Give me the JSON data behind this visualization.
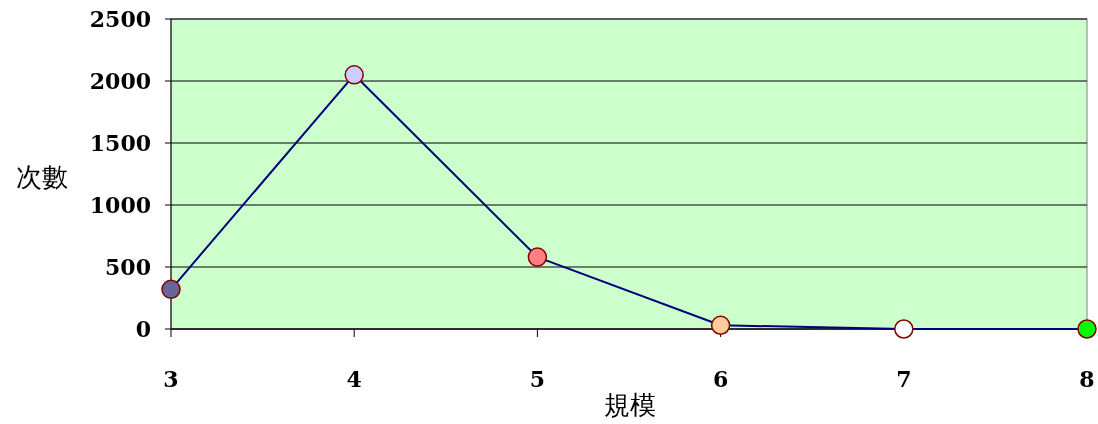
{
  "chart_data": {
    "type": "line",
    "xlabel": "規模",
    "ylabel": "次數",
    "x": [
      3,
      4,
      5,
      6,
      7,
      8
    ],
    "series": [
      {
        "color": "#000080",
        "colors": [
          "#666699",
          "#ccccff",
          "#ff8080",
          "#ffcc99",
          "#ffffff",
          "#00ff00"
        ],
        "values": [
          320,
          2050,
          580,
          30,
          0,
          0
        ]
      }
    ],
    "xlim": [
      3,
      8
    ],
    "xticks": [
      3,
      4,
      5,
      6,
      7,
      8
    ],
    "ylim": [
      0,
      2500
    ],
    "yticks": [
      0,
      500,
      1000,
      1500,
      2000,
      2500
    ],
    "grid": "y",
    "marker": "circle"
  }
}
